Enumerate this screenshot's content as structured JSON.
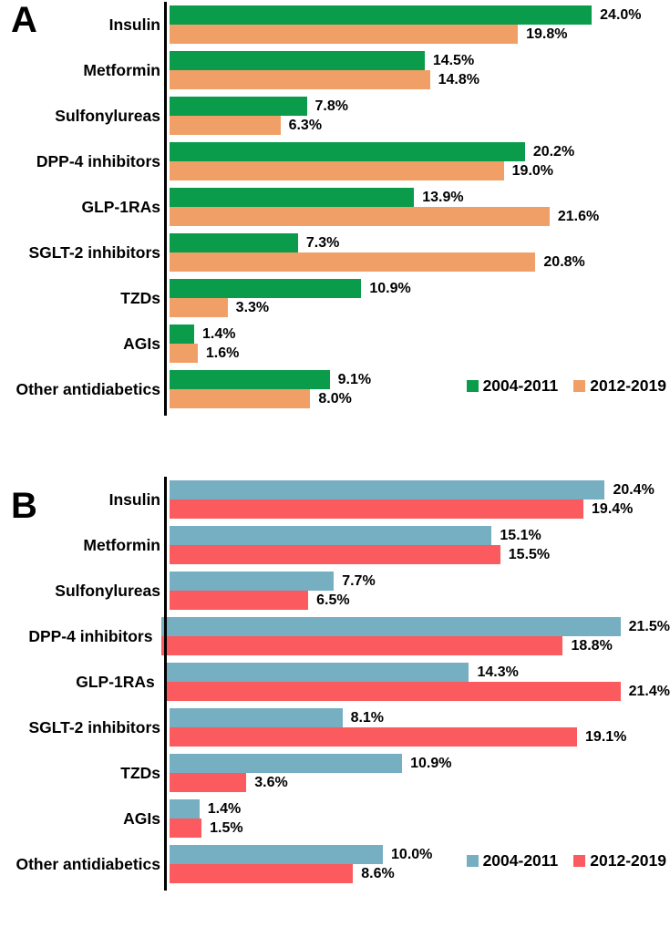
{
  "chart_data": [
    {
      "type": "bar",
      "panel": "A",
      "orientation": "horizontal",
      "title": "",
      "xlabel": "",
      "ylabel": "",
      "value_suffix": "%",
      "grid": false,
      "legend_position": "bottom-right",
      "xlim": [
        0,
        28.5
      ],
      "categories": [
        "Insulin",
        "Metformin",
        "Sulfonylureas",
        "DPP-4 inhibitors",
        "GLP-1RAs",
        "SGLT-2 inhibitors",
        "TZDs",
        "AGIs",
        "Other antidiabetics"
      ],
      "series": [
        {
          "name": "2004-2011",
          "color": "#0a9b4b",
          "values": [
            24.0,
            14.5,
            7.8,
            20.2,
            13.9,
            7.3,
            10.9,
            1.4,
            9.1
          ]
        },
        {
          "name": "2012-2019",
          "color": "#f0a066",
          "values": [
            19.8,
            14.8,
            6.3,
            19.0,
            21.6,
            20.8,
            3.3,
            1.6,
            8.0
          ]
        }
      ]
    },
    {
      "type": "bar",
      "panel": "B",
      "orientation": "horizontal",
      "title": "",
      "xlabel": "",
      "ylabel": "",
      "value_suffix": "%",
      "grid": false,
      "legend_position": "bottom-right",
      "xlim": [
        0,
        23.5
      ],
      "categories": [
        "Insulin",
        "Metformin",
        "Sulfonylureas",
        "DPP-4 inhibitors",
        "GLP-1RAs",
        "SGLT-2 inhibitors",
        "TZDs",
        "AGIs",
        "Other antidiabetics"
      ],
      "series": [
        {
          "name": "2004-2011",
          "color": "#76aec2",
          "values": [
            20.4,
            15.1,
            7.7,
            21.5,
            14.3,
            8.1,
            10.9,
            1.4,
            10.0
          ]
        },
        {
          "name": "2012-2019",
          "color": "#fb5a5e",
          "values": [
            19.4,
            15.5,
            6.5,
            18.8,
            21.4,
            19.1,
            3.6,
            1.5,
            8.6
          ]
        }
      ]
    }
  ]
}
